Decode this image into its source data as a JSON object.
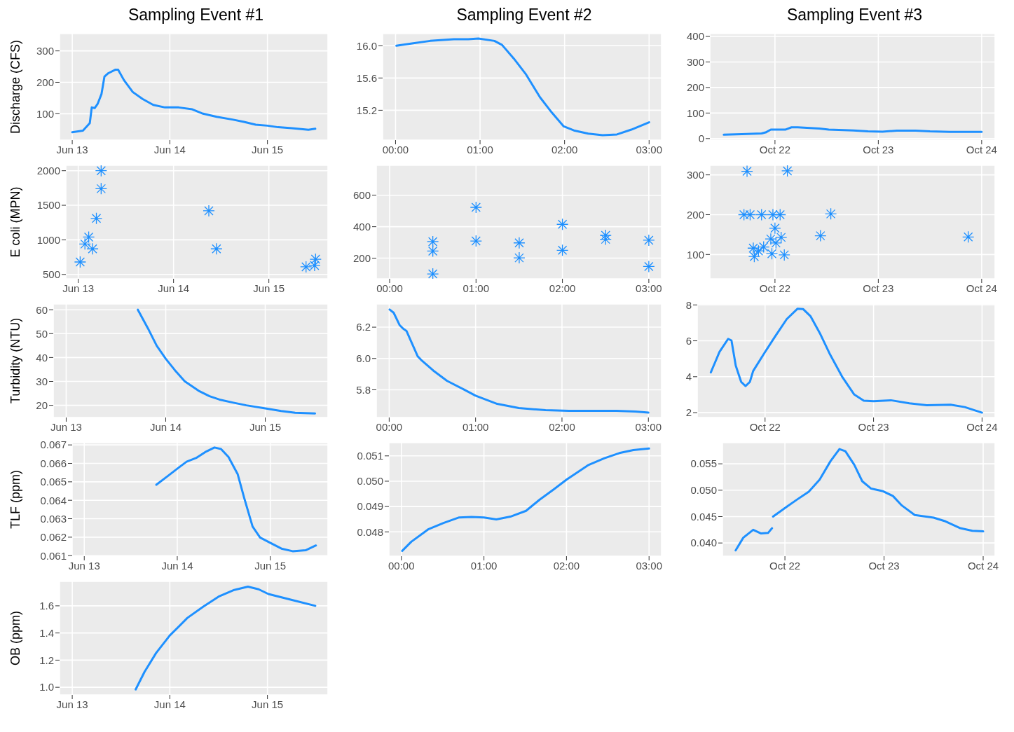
{
  "chart_data": [
    {
      "type": "line",
      "title": "Sampling Event #1",
      "ylabel": "Discharge (CFS)",
      "color": "#1e90ff",
      "grid": true,
      "xlim": [
        "--06-12T20:53",
        "--06-15T14:53"
      ],
      "xticks": [
        {
          "value": "--06-13",
          "label": "Jun 13"
        },
        {
          "value": "--06-14",
          "label": "Jun 14"
        },
        {
          "value": "--06-15",
          "label": "Jun 15"
        }
      ],
      "ylim": [
        16,
        355
      ],
      "yticks": [
        100,
        200,
        300
      ],
      "x": [
        "--06-13T00:00",
        "--06-13T02:38",
        "--06-13T04:19",
        "--06-13T04:48",
        "--06-13T05:31",
        "--06-13T06:14",
        "--06-13T07:12",
        "--06-13T07:55",
        "--06-13T08:53",
        "--06-13T10:34",
        "--06-13T11:17",
        "--06-13T12:43",
        "--06-13T14:53",
        "--06-13T17:17",
        "--06-13T19:55",
        "--06-13T22:48",
        "--06-14T02:10",
        "--06-14T05:31",
        "--06-14T08:10",
        "--06-14T11:31",
        "--06-14T15:36",
        "--06-14T18:14",
        "--06-14T21:07",
        "--06-15T00:00",
        "--06-15T02:38",
        "--06-15T06:00",
        "--06-15T10:05",
        "--06-15T11:46"
      ],
      "values": [
        41,
        46,
        70,
        120,
        118,
        131,
        163,
        218,
        229,
        240,
        240,
        207,
        169,
        147,
        128,
        120,
        120,
        114,
        100,
        90,
        81,
        74,
        65,
        62,
        57,
        54,
        49,
        52
      ]
    },
    {
      "type": "line",
      "title": "Sampling Event #2",
      "color": "#1e90ff",
      "grid": true,
      "xlim": [
        -0.153,
        3.147
      ],
      "xticks": [
        {
          "value": 0,
          "label": "00:00"
        },
        {
          "value": 1,
          "label": "01:00"
        },
        {
          "value": 2,
          "label": "02:00"
        },
        {
          "value": 3,
          "label": "03:00"
        }
      ],
      "ylim": [
        14.83,
        16.15
      ],
      "yticks": [
        15.2,
        {
          "value": 15.6,
          "label": "15.6"
        },
        {
          "value": 16,
          "label": "16.0"
        }
      ],
      "x": [
        0.01,
        0.21,
        0.41,
        0.69,
        0.86,
        0.98,
        1.17,
        1.26,
        1.4,
        1.54,
        1.71,
        1.85,
        1.99,
        2.11,
        2.28,
        2.45,
        2.62,
        2.79,
        3.0
      ],
      "values": [
        16.0,
        16.03,
        16.06,
        16.08,
        16.08,
        16.09,
        16.06,
        16.01,
        15.84,
        15.65,
        15.36,
        15.17,
        15.0,
        14.95,
        14.91,
        14.89,
        14.9,
        14.96,
        15.05
      ]
    },
    {
      "type": "line",
      "title": "Sampling Event #3",
      "color": "#1e90ff",
      "grid": true,
      "xlim": [
        "--10-21T08:53",
        "--10-24T03:07"
      ],
      "xticks": [
        {
          "value": "--10-22",
          "label": "Oct 22"
        },
        {
          "value": "--10-23",
          "label": "Oct 23"
        },
        {
          "value": "--10-24",
          "label": "Oct 24"
        }
      ],
      "ylim": [
        -6,
        411
      ],
      "yticks": [
        0,
        100,
        200,
        300,
        400
      ],
      "x": [
        "--10-21T12:07",
        "--10-21T16:19",
        "--10-21T20:53",
        "--10-21T21:50",
        "--10-21T23:02",
        "--10-22T00:14",
        "--10-22T02:24",
        "--10-22T03:50",
        "--10-22T05:17",
        "--10-22T10:19",
        "--10-22T12:29",
        "--10-22T18:14",
        "--10-22T21:36",
        "--10-23T00:58",
        "--10-23T04:19",
        "--10-23T08:38",
        "--10-23T12:00",
        "--10-23T16:34",
        "--10-24T00:00"
      ],
      "values": [
        15,
        17,
        20,
        24,
        35,
        35,
        35,
        44,
        44,
        39,
        35,
        32,
        28,
        27,
        31,
        31,
        28,
        26,
        26
      ]
    },
    {
      "type": "scatter",
      "ylabel": "E coli (MPN)",
      "color": "#1e90ff",
      "marker": "cross",
      "grid": true,
      "xlim": [
        "--06-12T20:53",
        "--06-15T14:53"
      ],
      "xticks": [
        {
          "value": "--06-13",
          "label": "Jun 13"
        },
        {
          "value": "--06-14",
          "label": "Jun 14"
        },
        {
          "value": "--06-15",
          "label": "Jun 15"
        }
      ],
      "ylim": [
        437,
        2078
      ],
      "yticks": [
        500,
        1000,
        1500,
        2000
      ],
      "x": [
        "--06-13T00:29",
        "--06-13T01:41",
        "--06-13T02:38",
        "--06-13T03:36",
        "--06-13T04:34",
        "--06-13T05:46",
        "--06-13T05:46",
        "--06-14T08:53",
        "--06-14T10:48",
        "--06-15T09:22",
        "--06-15T11:31",
        "--06-15T11:46"
      ],
      "values": [
        680,
        940,
        1040,
        870,
        1310,
        1740,
        2000,
        1420,
        870,
        610,
        630,
        720
      ]
    },
    {
      "type": "scatter",
      "color": "#1e90ff",
      "marker": "cross",
      "grid": true,
      "xlim": [
        -0.154,
        3.147
      ],
      "xticks": [
        {
          "value": 0,
          "label": "00:00"
        },
        {
          "value": 1,
          "label": "01:00"
        },
        {
          "value": 2,
          "label": "02:00"
        },
        {
          "value": 3,
          "label": "03:00"
        }
      ],
      "ylim": [
        69,
        790
      ],
      "yticks": [
        200,
        400,
        600
      ],
      "x": [
        0.5,
        0.5,
        0.5,
        1.0,
        1.0,
        1.5,
        1.5,
        2.0,
        2.0,
        2.5,
        2.5,
        3.0,
        3.0
      ],
      "values": [
        305,
        245,
        100,
        523,
        309,
        297,
        202,
        415,
        250,
        345,
        320,
        314,
        147
      ]
    },
    {
      "type": "scatter",
      "color": "#1e90ff",
      "marker": "cross",
      "grid": true,
      "xlim": [
        "--10-21T08:53",
        "--10-24T03:07"
      ],
      "xticks": [
        {
          "value": "--10-22",
          "label": "Oct 22"
        },
        {
          "value": "--10-23",
          "label": "Oct 23"
        },
        {
          "value": "--10-24",
          "label": "Oct 24"
        }
      ],
      "ylim": [
        39,
        324
      ],
      "yticks": [
        100,
        200,
        300
      ],
      "x": [
        "--10-21T17:31",
        "--10-22T02:53",
        "--10-21T16:48",
        "--10-21T18:14",
        "--10-21T20:53",
        "--10-21T23:31",
        "--10-22T01:12",
        "--10-22T00:00",
        "--10-21T23:02",
        "--10-22T01:26",
        "--10-21T18:58",
        "--10-21T20:10",
        "--10-21T19:12",
        "--10-21T21:22",
        "--10-21T23:17",
        "--10-22T02:10",
        "--10-22T00:14",
        "--10-22T10:34",
        "--10-22T12:58",
        "--10-23T20:53"
      ],
      "values": [
        309,
        310,
        200,
        200,
        200,
        200,
        200,
        166,
        139,
        143,
        116,
        109,
        95,
        119,
        102,
        99,
        129,
        147,
        202,
        144
      ]
    },
    {
      "type": "line",
      "ylabel": "Turbidity (NTU)",
      "color": "#1e90ff",
      "grid": true,
      "xlim": [
        "--06-12T20:53",
        "--06-15T15:07"
      ],
      "xticks": [
        {
          "value": "--06-13",
          "label": "Jun 13"
        },
        {
          "value": "--06-14",
          "label": "Jun 14"
        },
        {
          "value": "--06-15",
          "label": "Jun 15"
        }
      ],
      "ylim": [
        14.9,
        62.4
      ],
      "yticks": [
        20,
        30,
        40,
        50,
        60
      ],
      "x": [
        "--06-13T17:17",
        "--06-13T19:41",
        "--06-13T21:50",
        "--06-14T00:00",
        "--06-14T02:10",
        "--06-14T04:34",
        "--06-14T07:55",
        "--06-14T10:34",
        "--06-14T12:58",
        "--06-14T16:19",
        "--06-14T19:26",
        "--06-15T00:00",
        "--06-15T03:50",
        "--06-15T07:12",
        "--06-15T12:00"
      ],
      "values": [
        60,
        52.3,
        44.9,
        39.5,
        34.8,
        30.1,
        26.1,
        23.8,
        22.4,
        21.1,
        20.0,
        18.7,
        17.6,
        16.9,
        16.6
      ]
    },
    {
      "type": "line",
      "color": "#1e90ff",
      "grid": true,
      "xlim": [
        -0.149,
        3.152
      ],
      "xticks": [
        {
          "value": 0,
          "label": "00:00"
        },
        {
          "value": 1,
          "label": "01:00"
        },
        {
          "value": 2,
          "label": "02:00"
        },
        {
          "value": 3,
          "label": "03:00"
        }
      ],
      "ylim": [
        5.623,
        6.348
      ],
      "yticks": [
        5.8,
        {
          "value": 6,
          "label": "6.0"
        },
        6.2
      ],
      "x": [
        0.005,
        0.052,
        0.12,
        0.16,
        0.2,
        0.26,
        0.33,
        0.37,
        0.51,
        0.67,
        0.87,
        1.0,
        1.25,
        1.5,
        1.81,
        2.08,
        2.63,
        2.85,
        3.0
      ],
      "values": [
        6.313,
        6.292,
        6.214,
        6.191,
        6.176,
        6.101,
        6.014,
        5.991,
        5.923,
        5.857,
        5.8,
        5.762,
        5.71,
        5.683,
        5.67,
        5.666,
        5.666,
        5.661,
        5.654
      ]
    },
    {
      "type": "line",
      "color": "#1e90ff",
      "grid": true,
      "xlim": [
        "--10-21T09:00",
        "--10-24T02:53"
      ],
      "xticks": [
        {
          "value": "--10-22",
          "label": "Oct 22"
        },
        {
          "value": "--10-23",
          "label": "Oct 23"
        },
        {
          "value": "--10-24",
          "label": "Oct 24"
        }
      ],
      "ylim": [
        1.73,
        8.05
      ],
      "yticks": [
        2,
        4,
        6,
        8
      ],
      "x": [
        "--10-21T12:00",
        "--10-21T13:55",
        "--10-21T15:50",
        "--10-21T16:34",
        "--10-21T17:31",
        "--10-21T18:43",
        "--10-21T19:41",
        "--10-21T20:38",
        "--10-21T21:22",
        "--10-22T00:00",
        "--10-22T02:10",
        "--10-22T04:48",
        "--10-22T07:12",
        "--10-22T08:24",
        "--10-22T10:05",
        "--10-22T12:14",
        "--10-22T14:24",
        "--10-22T17:02",
        "--10-22T19:41",
        "--10-22T21:50",
        "--10-23T00:00",
        "--10-23T03:50",
        "--10-23T07:55",
        "--10-23T11:46",
        "--10-23T17:02",
        "--10-23T20:10",
        "--10-24T00:00"
      ],
      "values": [
        4.24,
        5.38,
        6.11,
        6.02,
        4.62,
        3.71,
        3.48,
        3.71,
        4.32,
        5.38,
        6.22,
        7.21,
        7.79,
        7.77,
        7.36,
        6.37,
        5.23,
        4.01,
        3.02,
        2.67,
        2.64,
        2.69,
        2.52,
        2.41,
        2.44,
        2.31,
        2.0
      ]
    },
    {
      "type": "line",
      "ylabel": "TLF (ppm)",
      "color": "#1e90ff",
      "grid": true,
      "xlim": [
        "--06-12T20:53",
        "--06-15T14:53"
      ],
      "xticks": [
        {
          "value": "--06-13",
          "label": "Jun 13"
        },
        {
          "value": "--06-14",
          "label": "Jun 14"
        },
        {
          "value": "--06-15",
          "label": "Jun 15"
        }
      ],
      "ylim": [
        0.06097,
        0.06712
      ],
      "yticks": [
        0.061,
        0.062,
        0.063,
        0.064,
        0.065,
        0.066,
        0.067
      ],
      "x": [
        "--06-13T18:36",
        "--06-13T21:36",
        "--06-14T00:14",
        "--06-14T02:24",
        "--06-14T05:02",
        "--06-14T07:12",
        "--06-14T09:36",
        "--06-14T11:17",
        "--06-14T13:12",
        "--06-14T15:36",
        "--06-14T17:17",
        "--06-14T19:26",
        "--06-14T21:22",
        "--06-15T00:14",
        "--06-15T02:53",
        "--06-15T05:46",
        "--06-15T09:07",
        "--06-15T11:46"
      ],
      "values": [
        0.06484,
        0.06532,
        0.06575,
        0.06609,
        0.06631,
        0.06661,
        0.06686,
        0.06678,
        0.06635,
        0.06541,
        0.06412,
        0.06258,
        0.06198,
        0.06167,
        0.06138,
        0.06124,
        0.06129,
        0.06155
      ]
    },
    {
      "type": "line",
      "color": "#1e90ff",
      "grid": true,
      "xlim": [
        -0.151,
        3.151
      ],
      "xticks": [
        {
          "value": 0,
          "label": "00:00"
        },
        {
          "value": 1,
          "label": "01:00"
        },
        {
          "value": 2,
          "label": "02:00"
        },
        {
          "value": 3,
          "label": "03:00"
        }
      ],
      "ylim": [
        0.04704,
        0.05152
      ],
      "yticks": [
        0.048,
        0.049,
        {
          "value": 0.05,
          "label": "0.050"
        },
        0.051
      ],
      "x": [
        0.01,
        0.12,
        0.33,
        0.51,
        0.7,
        0.85,
        1.0,
        1.15,
        1.32,
        1.51,
        1.67,
        1.85,
        2.0,
        2.26,
        2.46,
        2.64,
        2.81,
        3.0
      ],
      "values": [
        0.04725,
        0.04761,
        0.04811,
        0.04835,
        0.04857,
        0.04859,
        0.04857,
        0.04849,
        0.0486,
        0.04883,
        0.04926,
        0.04969,
        0.05006,
        0.05063,
        0.05091,
        0.05111,
        0.05123,
        0.05129
      ]
    },
    {
      "type": "line",
      "color": "#1e90ff",
      "grid": true,
      "xlim": [
        "--10-21T08:53",
        "--10-24T02:53"
      ],
      "xticks": [
        {
          "value": "--10-22",
          "label": "Oct 22"
        },
        {
          "value": "--10-23",
          "label": "Oct 23"
        },
        {
          "value": "--10-24",
          "label": "Oct 24"
        }
      ],
      "ylim": [
        0.0375,
        0.059
      ],
      "yticks": [
        {
          "value": 0.04,
          "label": "0.040"
        },
        0.045,
        {
          "value": 0.05,
          "label": "0.050"
        },
        0.055
      ],
      "x": [
        "--10-21T12:04",
        "--10-21T13:55",
        "--10-21T16:19",
        "--10-21T18:14",
        "--10-21T19:55",
        "--10-21T20:53",
        "--10-21T21:00",
        "--10-21T21:07",
        "--10-22T00:29",
        "--10-22T02:53",
        "--10-22T05:46",
        "--10-22T08:24",
        "--10-22T11:02",
        "--10-22T13:12",
        "--10-22T14:38",
        "--10-22T16:48",
        "--10-22T18:43",
        "--10-22T20:53",
        "--10-22T23:46",
        "--10-23T02:10",
        "--10-23T04:19",
        "--10-23T07:26",
        "--10-23T12:00",
        "--10-23T14:53",
        "--10-23T18:29",
        "--10-23T21:22",
        "--10-24T00:00"
      ],
      "values": [
        0.0386,
        0.041,
        0.0425,
        0.0418,
        0.0419,
        0.0428,
        null,
        0.045,
        0.0469,
        0.0482,
        0.0497,
        0.052,
        0.0555,
        0.0578,
        0.0574,
        0.0548,
        0.0517,
        0.0503,
        0.0498,
        0.0489,
        0.0471,
        0.0453,
        0.0448,
        0.0441,
        0.0428,
        0.0423,
        0.0422
      ]
    },
    {
      "type": "line",
      "ylabel": "OB (ppm)",
      "color": "#1e90ff",
      "grid": true,
      "xlim": [
        "--06-12T20:53",
        "--06-15T14:53"
      ],
      "xticks": [
        {
          "value": "--06-13",
          "label": "Jun 13"
        },
        {
          "value": "--06-14",
          "label": "Jun 14"
        },
        {
          "value": "--06-15",
          "label": "Jun 15"
        }
      ],
      "ylim": [
        0.944,
        1.78
      ],
      "yticks": [
        {
          "value": 1,
          "label": "1.0"
        },
        1.2,
        1.4,
        1.6
      ],
      "x": [
        "--06-13T15:36",
        "--06-13T17:46",
        "--06-13T20:38",
        "--06-14T00:00",
        "--06-14T04:19",
        "--06-14T08:10",
        "--06-14T12:00",
        "--06-14T15:50",
        "--06-14T19:12",
        "--06-14T21:50",
        "--06-15T00:14",
        "--06-15T05:31",
        "--06-15T11:46"
      ],
      "values": [
        0.984,
        1.113,
        1.253,
        1.382,
        1.511,
        1.593,
        1.668,
        1.717,
        1.741,
        1.722,
        1.687,
        1.647,
        1.6
      ]
    }
  ]
}
